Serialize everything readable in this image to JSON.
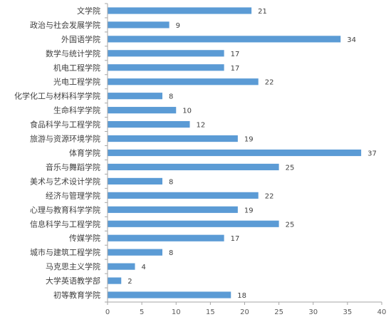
{
  "chart_data": {
    "type": "bar",
    "orientation": "horizontal",
    "title": "",
    "xlabel": "",
    "ylabel": "",
    "xlim": [
      0,
      40
    ],
    "x_ticks": [
      0,
      5,
      10,
      15,
      20,
      25,
      30,
      35,
      40
    ],
    "grid": false,
    "bar_color": "#5B9BD5",
    "axis_color": "#A6A6A6",
    "categories": [
      "文学院",
      "政治与社会发展学院",
      "外国语学院",
      "数学与统计学院",
      "机电工程学院",
      "光电工程学院",
      "化学化工与材料科学学院",
      "生命科学学院",
      "食品科学与工程学院",
      "旅游与资源环境学院",
      "体育学院",
      "音乐与舞蹈学院",
      "美术与艺术设计学院",
      "经济与管理学院",
      "心理与教育科学学院",
      "信息科学与工程学院",
      "传媒学院",
      "城市与建筑工程学院",
      "马克思主义学院",
      "大学英语教学部",
      "初等教育学院"
    ],
    "values": [
      21,
      9,
      34,
      17,
      17,
      22,
      8,
      10,
      12,
      19,
      37,
      25,
      8,
      22,
      19,
      25,
      17,
      8,
      4,
      2,
      18
    ]
  }
}
